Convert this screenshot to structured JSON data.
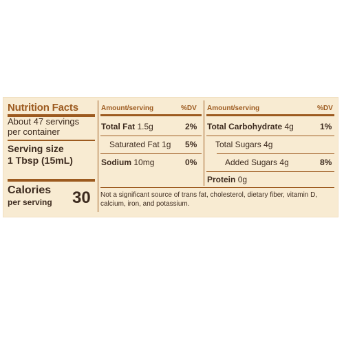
{
  "title": "Nutrition Facts",
  "servings_per_container": "About 47 servings per container",
  "serving_size_label": "Serving size",
  "serving_size_value": "1 Tbsp (15mL)",
  "calories_label": "Calories",
  "calories_sublabel": "per serving",
  "calories_value": "30",
  "column_headers": {
    "amount": "Amount/serving",
    "dv": "%DV"
  },
  "left_rows": [
    {
      "name": "Total Fat",
      "amount": "1.5g",
      "dv": "2%"
    },
    {
      "name": "Saturated Fat",
      "amount": "1g",
      "dv": "5%"
    },
    {
      "name": "Sodium",
      "amount": "10mg",
      "dv": "0%"
    }
  ],
  "right_rows": [
    {
      "name": "Total Carbohydrate",
      "amount": "4g",
      "dv": "1%"
    },
    {
      "name": "Total Sugars",
      "amount": "4g",
      "dv": ""
    },
    {
      "name": "Added Sugars",
      "amount": "4g",
      "dv": "8%"
    },
    {
      "name": "Protein",
      "amount": "0g",
      "dv": ""
    }
  ],
  "footnote": "Not a significant source of trans fat, cholesterol, dietary fiber, vitamin D, calcium, iron, and potassium.",
  "colors": {
    "background": "#f8ebd2",
    "accent": "#9c5a1f",
    "text": "#3d2b1f"
  }
}
